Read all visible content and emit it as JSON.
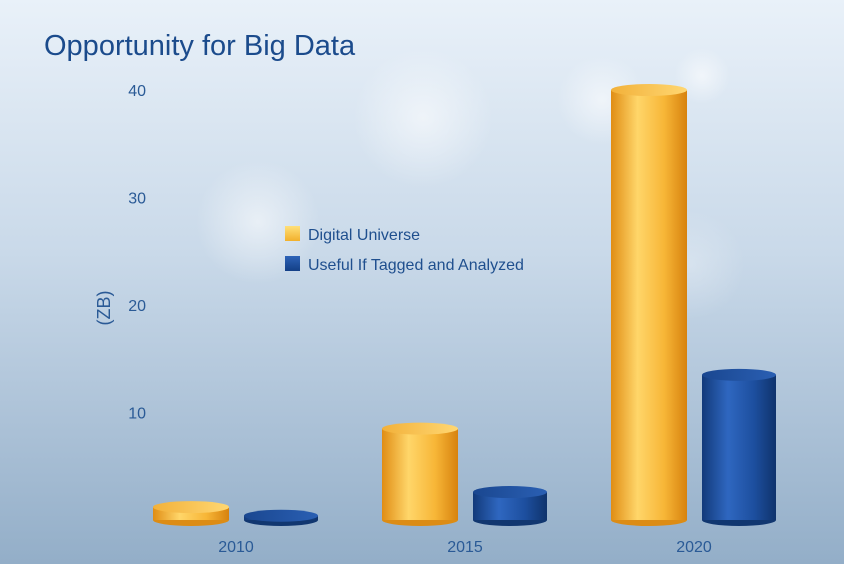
{
  "chart_data": {
    "type": "bar",
    "title": "Opportunity for Big Data",
    "xlabel": "",
    "ylabel": "(ZB)",
    "categories": [
      "2010",
      "2015",
      "2020"
    ],
    "series": [
      {
        "name": "Digital Universe",
        "values": [
          1.2,
          8.5,
          40
        ],
        "color": "#f5b52e"
      },
      {
        "name": "Useful If Tagged and Analyzed",
        "values": [
          0.4,
          2.6,
          13.5
        ],
        "color": "#1c4e9c"
      }
    ],
    "ylim": [
      0,
      40
    ],
    "yticks": [
      10,
      20,
      30,
      40
    ],
    "grid": false,
    "legend_position": "center-left"
  }
}
